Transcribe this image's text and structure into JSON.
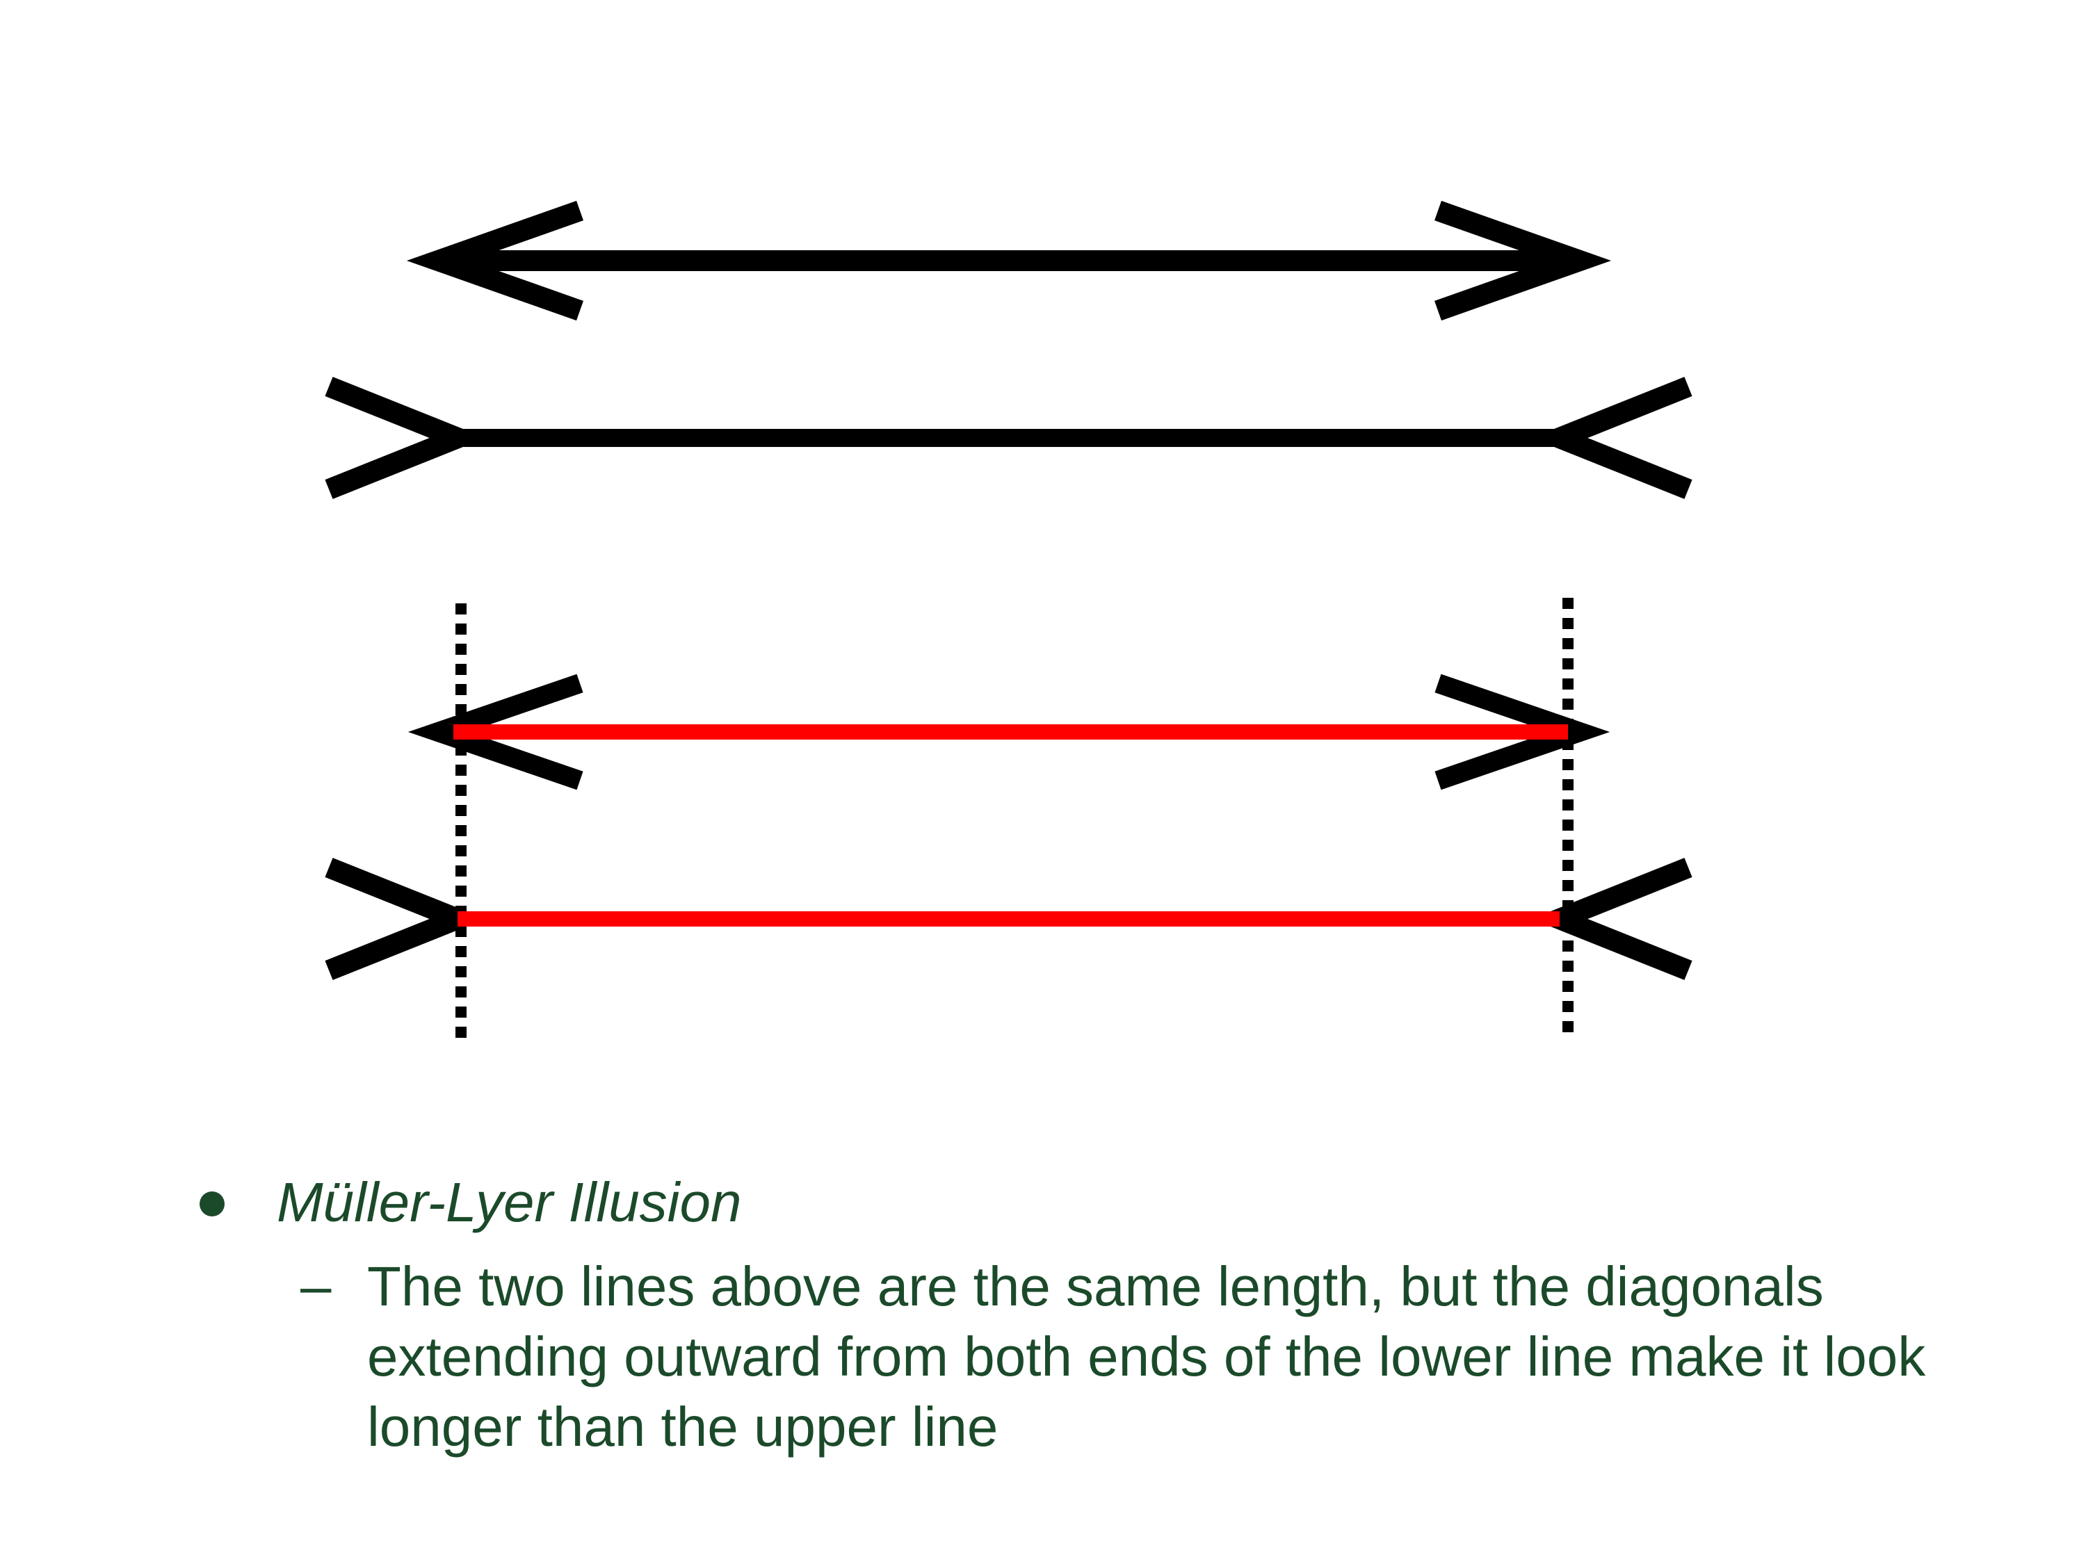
{
  "bullet": {
    "title": "Müller-Lyer Illusion",
    "sub_dash": "–",
    "sub_text": "The two lines above are the same length, but the diagonals extending outward from both ends of the lower line make it look longer than the upper line"
  },
  "colors": {
    "text": "#1b4a2a",
    "line_black": "#000000",
    "line_red": "#ff0000"
  }
}
